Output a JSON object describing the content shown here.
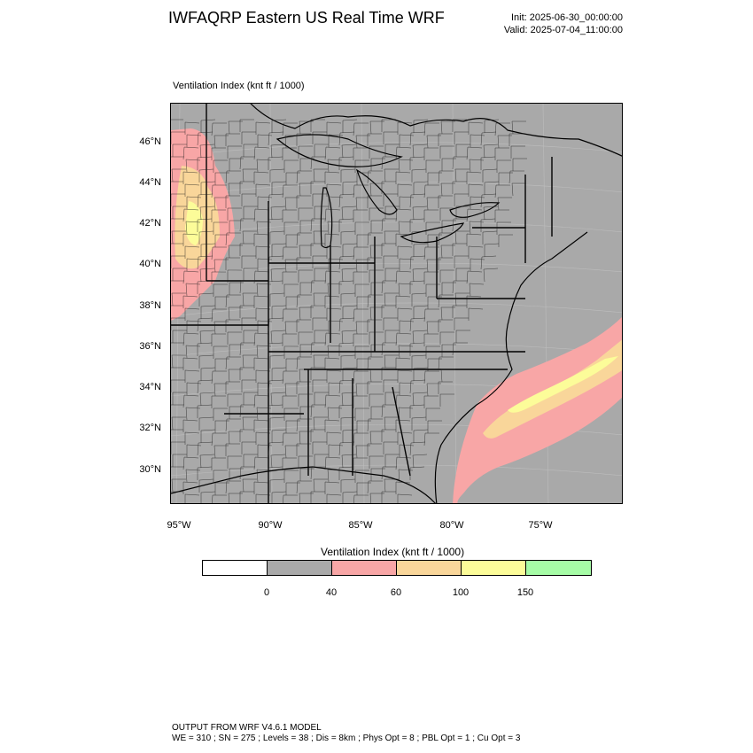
{
  "header": {
    "title": "IWFAQRP Eastern US Real Time WRF",
    "init": "Init: 2025-06-30_00:00:00",
    "valid": "Valid: 2025-07-04_11:00:00"
  },
  "map": {
    "subtitle": "Ventilation Index   (knt ft / 1000)",
    "lat_labels": [
      "46°N",
      "44°N",
      "42°N",
      "40°N",
      "38°N",
      "36°N",
      "34°N",
      "32°N",
      "30°N"
    ],
    "lon_labels": [
      "95°W",
      "90°W",
      "85°W",
      "80°W",
      "75°W"
    ],
    "colors": {
      "background": "#a9a9a9",
      "lt40": "#a9a9a9",
      "r40_60": "#f8a6a6",
      "r60_100": "#f9d69a",
      "r100_150": "#fcfc99",
      "gt150": "#a6fca6",
      "lt0": "#ffffff"
    }
  },
  "legend": {
    "title": "Ventilation Index  (knt ft / 1000)",
    "swatch_colors": [
      "#ffffff",
      "#a9a9a9",
      "#f8a6a6",
      "#f9d69a",
      "#fcfc99",
      "#a6fca6"
    ],
    "ticks": [
      "0",
      "40",
      "60",
      "100",
      "150"
    ]
  },
  "footer": {
    "line1": "OUTPUT FROM WRF V4.6.1 MODEL",
    "line2": "WE = 310 ; SN = 275 ; Levels = 38 ; Dis = 8km ; Phys Opt = 8 ; PBL Opt = 1 ; Cu Opt = 3"
  }
}
